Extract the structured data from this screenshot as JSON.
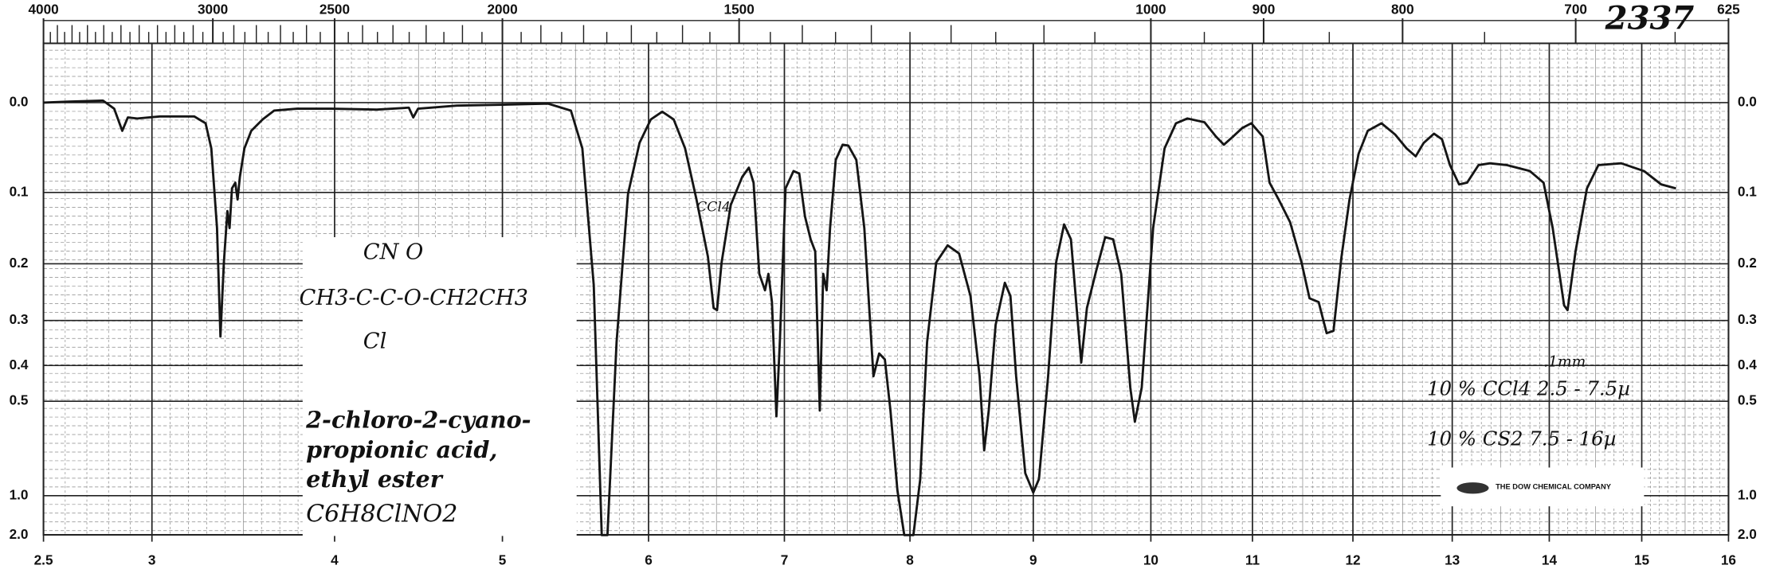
{
  "chart_data": {
    "type": "line",
    "chart_id": "2337",
    "color": "#151515",
    "grid": true,
    "yscale": "transmittance",
    "xlim": [
      2.5,
      16
    ],
    "xticks": [
      2.5,
      3,
      4,
      5,
      6,
      7,
      8,
      9,
      10,
      11,
      12,
      13,
      14,
      15,
      16
    ],
    "x2ticks": [
      4000,
      3000,
      2500,
      2000,
      1500,
      1000,
      900,
      800,
      700,
      625
    ],
    "ylim": [
      0,
      2
    ],
    "yticks": [
      {
        "value": 0,
        "label": "0.0"
      },
      0.1,
      0.2,
      0.3,
      0.4,
      0.5,
      {
        "value": 1,
        "label": "1.0"
      },
      {
        "value": 2,
        "label": "2.0"
      }
    ],
    "x": [
      2.5,
      2.616,
      2.774,
      2.826,
      2.863,
      2.889,
      2.932,
      3.044,
      3.231,
      3.294,
      3.325,
      3.356,
      3.375,
      3.394,
      3.413,
      3.425,
      3.438,
      3.456,
      3.469,
      3.481,
      3.506,
      3.544,
      3.606,
      3.669,
      3.794,
      3.981,
      4.252,
      4.442,
      4.469,
      4.497,
      4.728,
      5.0,
      5.313,
      5.469,
      5.547,
      5.625,
      5.68,
      5.719,
      5.781,
      5.859,
      5.938,
      6.017,
      6.101,
      6.185,
      6.269,
      6.353,
      6.437,
      6.479,
      6.504,
      6.538,
      6.605,
      6.689,
      6.739,
      6.773,
      6.815,
      6.857,
      6.882,
      6.908,
      6.941,
      6.966,
      7.009,
      7.073,
      7.118,
      7.164,
      7.209,
      7.245,
      7.282,
      7.309,
      7.336,
      7.364,
      7.409,
      7.464,
      7.509,
      7.573,
      7.636,
      7.709,
      7.755,
      7.8,
      7.845,
      7.9,
      7.955,
      8.028,
      8.083,
      8.139,
      8.213,
      8.306,
      8.398,
      8.491,
      8.565,
      8.602,
      8.639,
      8.694,
      8.769,
      8.815,
      8.861,
      8.935,
      9.0,
      9.049,
      9.126,
      9.194,
      9.262,
      9.32,
      9.369,
      9.408,
      9.456,
      9.534,
      9.612,
      9.68,
      9.748,
      9.825,
      9.864,
      9.922,
      10.022,
      10.135,
      10.247,
      10.36,
      10.528,
      10.64,
      10.719,
      10.809,
      10.899,
      10.989,
      11.102,
      11.17,
      11.261,
      11.375,
      11.489,
      11.568,
      11.659,
      11.739,
      11.807,
      11.886,
      11.966,
      12.057,
      12.149,
      12.287,
      12.425,
      12.54,
      12.632,
      12.713,
      12.816,
      12.897,
      12.977,
      13.071,
      13.153,
      13.271,
      13.388,
      13.565,
      13.8,
      13.941,
      14.037,
      14.16,
      14.198,
      14.284,
      14.407,
      14.531,
      14.778,
      15.026,
      15.224,
      15.395
    ],
    "values": [
      0,
      -0.001,
      -0.002,
      0.006,
      0.029,
      0.015,
      0.016,
      0.014,
      0.014,
      0.021,
      0.048,
      0.147,
      0.333,
      0.198,
      0.124,
      0.147,
      0.095,
      0.088,
      0.109,
      0.081,
      0.048,
      0.029,
      0.017,
      0.008,
      0.006,
      0.006,
      0.007,
      0.005,
      0.015,
      0.006,
      0.003,
      0.002,
      0.001,
      0.008,
      0.048,
      0.235,
      2.0,
      2.0,
      0.345,
      0.102,
      0.042,
      0.017,
      0.009,
      0.017,
      0.048,
      0.109,
      0.189,
      0.276,
      0.28,
      0.198,
      0.116,
      0.081,
      0.07,
      0.088,
      0.216,
      0.244,
      0.216,
      0.265,
      0.55,
      0.345,
      0.095,
      0.074,
      0.077,
      0.131,
      0.163,
      0.181,
      0.53,
      0.216,
      0.244,
      0.147,
      0.061,
      0.044,
      0.045,
      0.061,
      0.147,
      0.428,
      0.371,
      0.385,
      0.53,
      0.95,
      2.0,
      2.0,
      0.86,
      0.345,
      0.198,
      0.172,
      0.184,
      0.254,
      0.428,
      0.691,
      0.53,
      0.309,
      0.231,
      0.254,
      0.428,
      0.82,
      0.97,
      0.859,
      0.428,
      0.198,
      0.142,
      0.163,
      0.276,
      0.393,
      0.276,
      0.212,
      0.16,
      0.163,
      0.216,
      0.459,
      0.57,
      0.459,
      0.147,
      0.048,
      0.021,
      0.016,
      0.02,
      0.035,
      0.044,
      0.035,
      0.026,
      0.021,
      0.035,
      0.088,
      0.109,
      0.139,
      0.198,
      0.258,
      0.265,
      0.326,
      0.321,
      0.189,
      0.109,
      0.054,
      0.029,
      0.021,
      0.033,
      0.048,
      0.057,
      0.042,
      0.032,
      0.038,
      0.067,
      0.09,
      0.088,
      0.067,
      0.065,
      0.067,
      0.074,
      0.088,
      0.147,
      0.271,
      0.28,
      0.181,
      0.095,
      0.067,
      0.065,
      0.074,
      0.09,
      0.095
    ],
    "structure": [
      "CN  O",
      "CH3-C-C-O-CH2CH3",
      "Cl"
    ],
    "compound_name": [
      "2-chloro-2-cyano-",
      "propionic acid,",
      "ethyl ester"
    ],
    "formula": "C6H8ClNO2",
    "annotations": [
      "CCl4",
      ".1mm",
      "10 % CCl4   2.5 - 7.5µ",
      "10 % CS2   7.5 - 16µ"
    ],
    "company": "THE DOW CHEMICAL COMPANY"
  }
}
